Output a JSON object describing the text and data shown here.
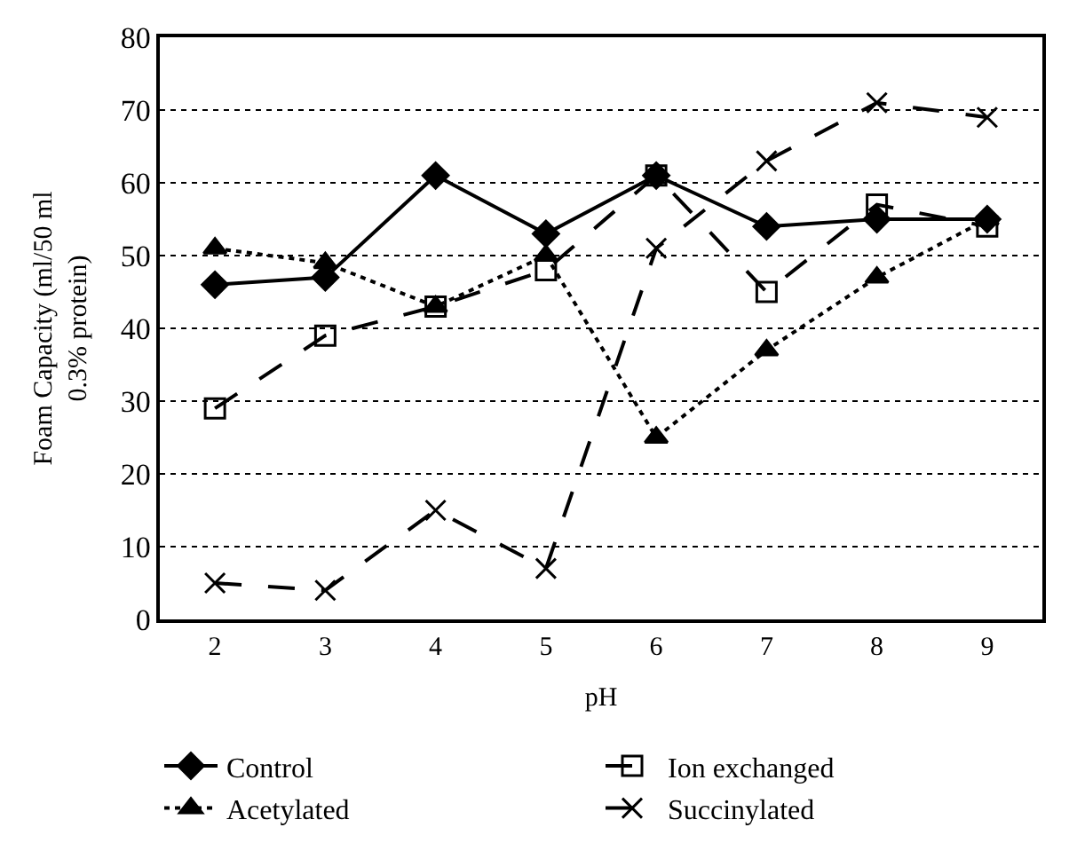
{
  "chart_data": {
    "type": "line",
    "xlabel": "pH",
    "ylabel": "Foam Capacity (ml/50 ml\n0.3% protein)",
    "categories": [
      "2",
      "3",
      "4",
      "5",
      "6",
      "7",
      "8",
      "9"
    ],
    "ylim": [
      0,
      80
    ],
    "yticks": [
      0,
      10,
      20,
      30,
      40,
      50,
      60,
      70,
      80
    ],
    "grid": "y",
    "legend": "bottom",
    "series": [
      {
        "name": "Control",
        "color": "#000000",
        "marker": "diamond",
        "line_style": "solid",
        "values": [
          46,
          47,
          61,
          53,
          61,
          54,
          55,
          55
        ]
      },
      {
        "name": "Ion exchanged",
        "color": "#000000",
        "marker": "square",
        "line_style": "dashed",
        "values": [
          29,
          39,
          43,
          48,
          61,
          45,
          57,
          54
        ]
      },
      {
        "name": "Acetylated",
        "color": "#000000",
        "marker": "triangle",
        "line_style": "dotted",
        "values": [
          51,
          49,
          43,
          50,
          25,
          37,
          47,
          55
        ]
      },
      {
        "name": "Succinylated",
        "color": "#000000",
        "marker": "cross",
        "line_style": "dashed",
        "values": [
          5,
          4,
          15,
          7,
          51,
          63,
          71,
          69
        ]
      }
    ]
  }
}
